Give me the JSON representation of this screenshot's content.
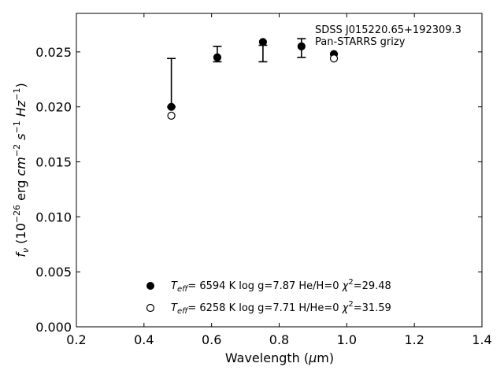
{
  "chart_data": {
    "type": "scatter",
    "annotation": [
      "SDSS J015220.65+192309.3",
      "Pan-STARRS grizy"
    ],
    "xlabel": {
      "main": "Wavelength (",
      "mu": "μ",
      "tail": "m)"
    },
    "ylabel": {
      "f": "f",
      "nu": "ν",
      "open": " (10",
      "exp1": "−26",
      "erg": " erg ",
      "cm": "cm",
      "exp2": "−2",
      "s": " s",
      "exp3": "−1",
      "hz": " Hz",
      "exp4": "−1",
      "close": ")"
    },
    "xlim": [
      0.2,
      1.4
    ],
    "ylim": [
      0.0,
      0.0285
    ],
    "xticks": [
      "0.2",
      "0.4",
      "0.6",
      "0.8",
      "1.0",
      "1.2",
      "1.4"
    ],
    "yticks": [
      "0.000",
      "0.005",
      "0.010",
      "0.015",
      "0.020",
      "0.025"
    ],
    "observed": {
      "x": [
        0.481,
        0.617,
        0.752,
        0.866,
        0.962
      ],
      "y": [
        0.02,
        0.0255,
        0.0256,
        0.0254,
        null
      ],
      "err_low": [
        0.02,
        0.0241,
        0.0241,
        0.0245,
        null
      ],
      "err_high": [
        0.0244,
        0.0255,
        0.0256,
        0.0262,
        null
      ]
    },
    "series": [
      {
        "marker": "filled",
        "x": [
          0.481,
          0.617,
          0.752,
          0.866,
          0.962
        ],
        "y": [
          0.02,
          0.0245,
          0.0259,
          0.0255,
          0.0248
        ],
        "legend": {
          "teff": "T",
          "teff_sub": "eff",
          "eq": "=  6594 K  log g=7.87  He/H=0  ",
          "chi": "χ",
          "chi_sup": "2",
          "chi_val": "=29.48"
        }
      },
      {
        "marker": "open",
        "x": [
          0.481,
          0.962
        ],
        "y": [
          0.0192,
          0.0244
        ],
        "legend": {
          "teff": "T",
          "teff_sub": "eff",
          "eq": "=  6258 K  log g=7.71  H/He=0  ",
          "chi": "χ",
          "chi_sup": "2",
          "chi_val": "=31.59"
        }
      }
    ],
    "grid": false,
    "legend_position": "bottom-center"
  }
}
